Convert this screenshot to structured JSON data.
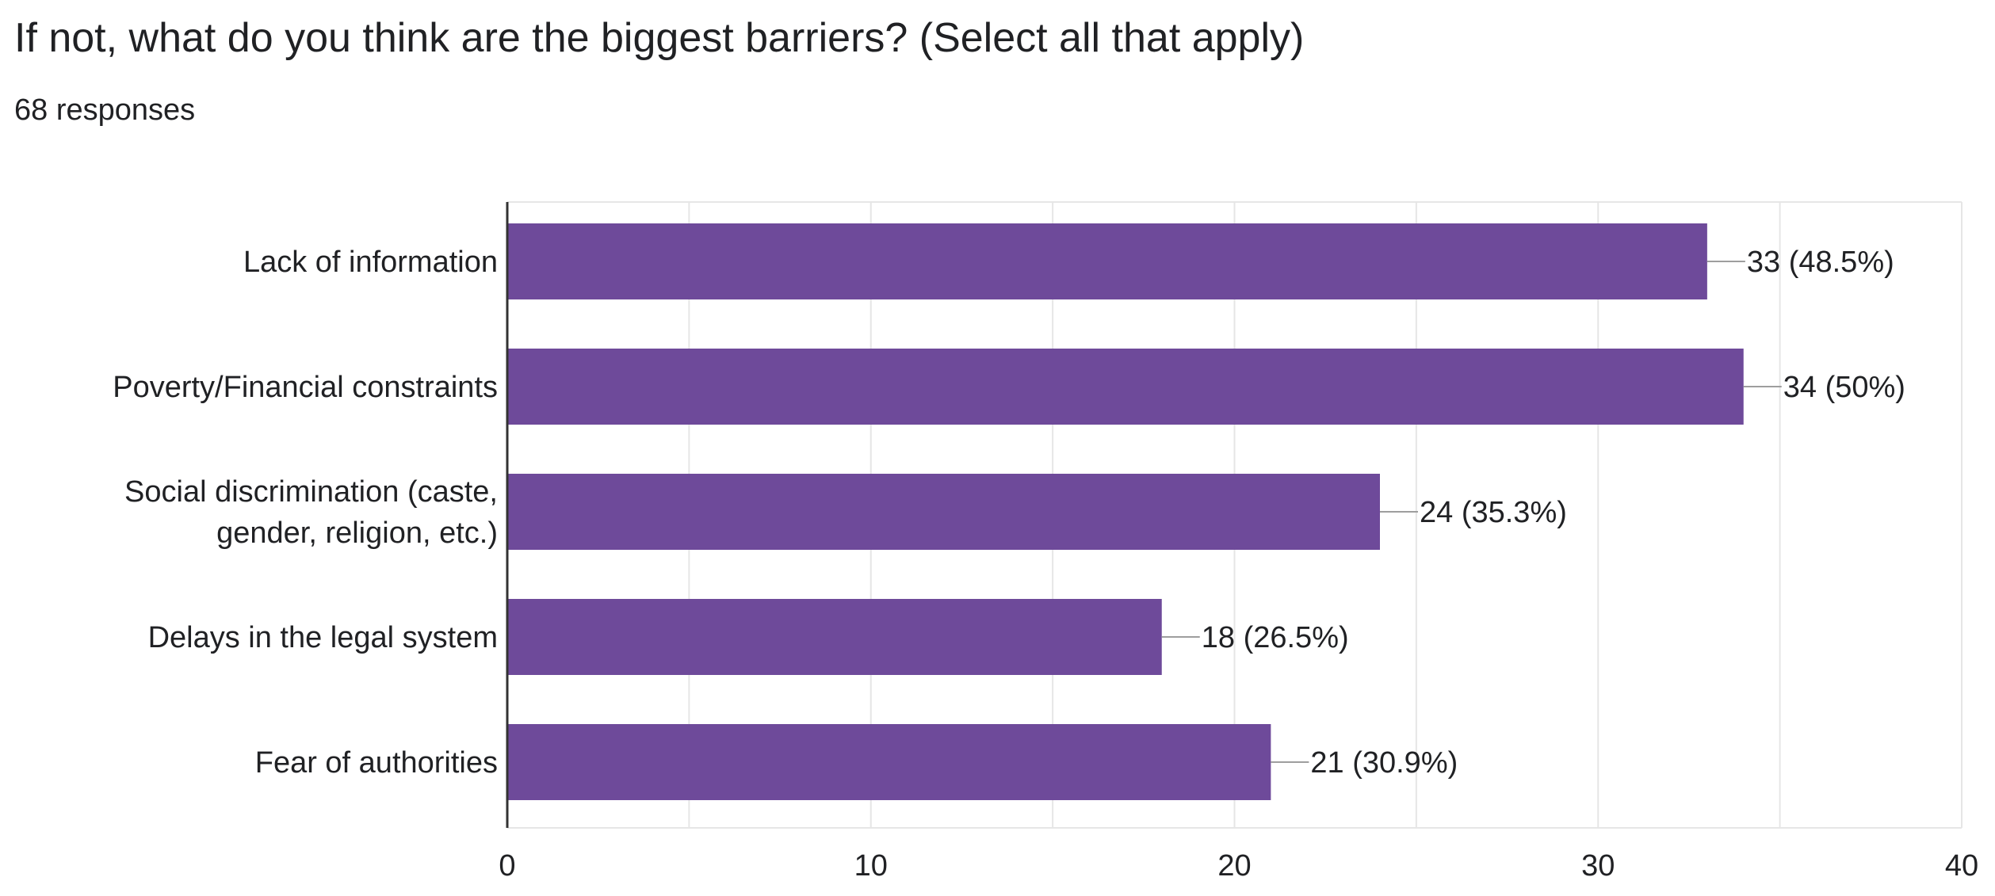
{
  "question": {
    "title": "If not, what do you think are the biggest barriers? (Select all that apply)",
    "responses": "68 responses"
  },
  "colors": {
    "bar": "#6e4a9a",
    "grid": "#e6e6e6",
    "axis": "#333333",
    "leader": "#9e9e9e"
  },
  "chart_data": {
    "type": "bar",
    "orientation": "horizontal",
    "title": "If not, what do you think are the biggest barriers? (Select all that apply)",
    "categories": [
      [
        "Lack of information"
      ],
      [
        "Poverty/Financial constraints"
      ],
      [
        "Social discrimination (caste,",
        "gender, religion, etc.)"
      ],
      [
        "Delays in the legal system"
      ],
      [
        "Fear of authorities"
      ]
    ],
    "values": [
      33,
      34,
      24,
      18,
      21
    ],
    "value_labels": [
      "33 (48.5%)",
      "34 (50%)",
      "24 (35.3%)",
      "18 (26.5%)",
      "21 (30.9%)"
    ],
    "xlim": [
      0,
      40
    ],
    "xticks": [
      0,
      10,
      20,
      30,
      40
    ],
    "minor_grid_step": 5,
    "xlabel": "",
    "ylabel": ""
  }
}
